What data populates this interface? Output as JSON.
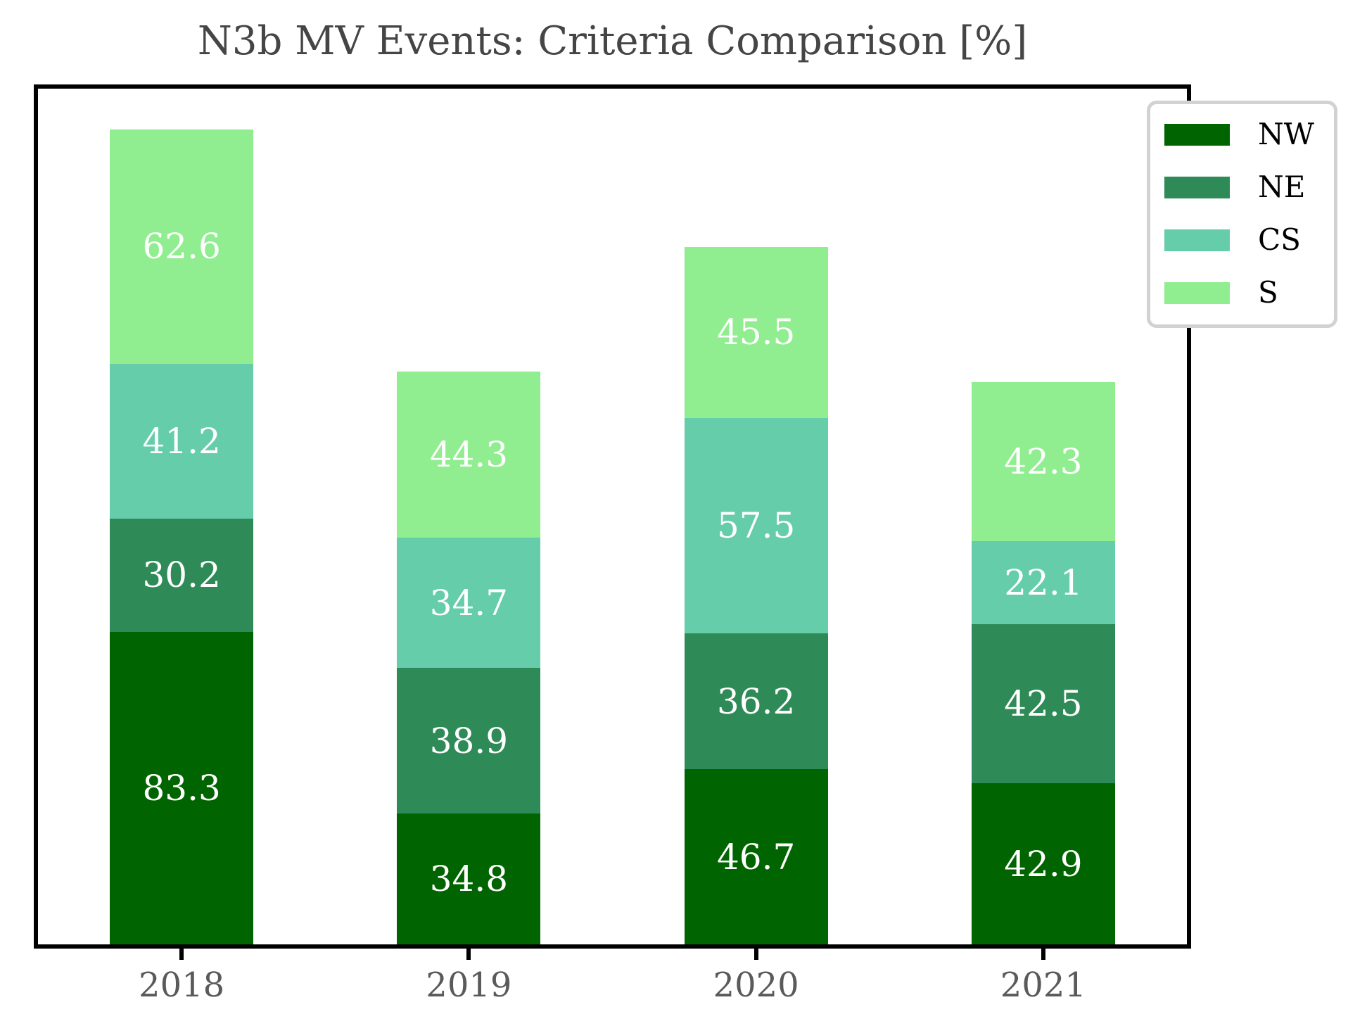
{
  "title": "N3b MV Events: Criteria Comparison [%]",
  "chart_data": {
    "type": "bar",
    "stacked": true,
    "title": "N3b MV Events: Criteria Comparison [%]",
    "xlabel": "",
    "ylabel": "",
    "categories": [
      "2018",
      "2019",
      "2020",
      "2021"
    ],
    "series": [
      {
        "name": "NW",
        "color": "#006400",
        "values": [
          83.3,
          34.8,
          46.7,
          42.9
        ]
      },
      {
        "name": "NE",
        "color": "#2e8b57",
        "values": [
          30.2,
          38.9,
          36.2,
          42.5
        ]
      },
      {
        "name": "CS",
        "color": "#66cdaa",
        "values": [
          41.2,
          34.7,
          57.5,
          22.1
        ]
      },
      {
        "name": "S",
        "color": "#90ee90",
        "values": [
          62.6,
          44.3,
          45.5,
          42.3
        ]
      }
    ],
    "stack_totals": [
      217.3,
      152.7,
      185.9,
      149.8
    ],
    "ylim": [
      0,
      228.1
    ],
    "y_axis_ticks_visible": false,
    "grid": false,
    "legend_position": "upper right",
    "bar_labels": true,
    "bar_label_color": "#ffffff",
    "frame_color": "#000000",
    "tick_label_color": "#5a5a5a"
  }
}
